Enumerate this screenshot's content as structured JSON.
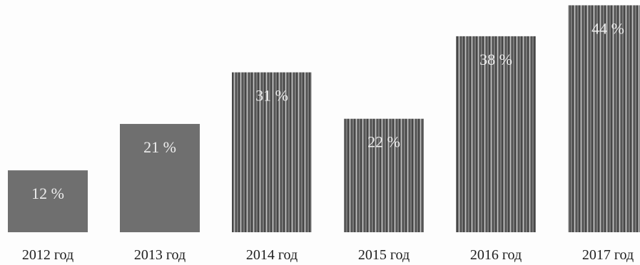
{
  "header_fragment": "",
  "chart_data": {
    "type": "bar",
    "categories": [
      "2012 год",
      "2013 год",
      "2014 год",
      "2015 год",
      "2016 год",
      "2017 год"
    ],
    "values": [
      12,
      21,
      31,
      22,
      38,
      44
    ],
    "data_labels": [
      "12 %",
      "21 %",
      "31 %",
      "22 %",
      "38 %",
      "44 %"
    ],
    "title": "",
    "xlabel": "",
    "ylabel": "",
    "ylim": [
      0,
      44
    ],
    "grid": false,
    "legend": "none",
    "bar_styles": [
      "solid",
      "solid",
      "striped",
      "striped",
      "striped",
      "striped"
    ],
    "colors": {
      "bar": "#6f6f6f",
      "stripe_dark": "#4a4a4a",
      "stripe_light": "#b9b9b9",
      "label": "#eeeeee",
      "category": "#1f1f1f"
    }
  }
}
